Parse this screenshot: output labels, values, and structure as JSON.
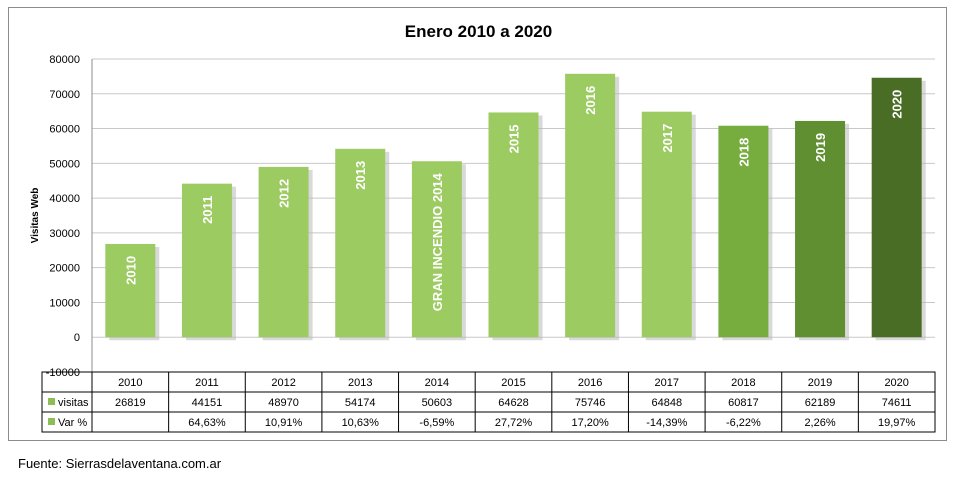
{
  "chart_data": {
    "type": "bar",
    "title": "Enero 2010 a 2020",
    "ylabel": "Visitas Web",
    "ylim": [
      -10000,
      80000
    ],
    "yticks": [
      80000,
      70000,
      60000,
      50000,
      40000,
      30000,
      20000,
      10000,
      0,
      -10000
    ],
    "grid": true,
    "categories": [
      "2010",
      "2011",
      "2012",
      "2013",
      "2014",
      "2015",
      "2016",
      "2017",
      "2018",
      "2019",
      "2020"
    ],
    "bar_labels": [
      "2010",
      "2011",
      "2012",
      "2013",
      "GRAN INCENDIO   2014",
      "2015",
      "2016",
      "2017",
      "2018",
      "2019",
      "2020"
    ],
    "series": [
      {
        "name": "visitas",
        "values": [
          26819,
          44151,
          48970,
          54174,
          50603,
          64628,
          75746,
          64848,
          60817,
          62189,
          74611
        ],
        "table_values": [
          "26819",
          "44151",
          "48970",
          "54174",
          "50603",
          "64628",
          "75746",
          "64848",
          "60817",
          "62189",
          "74611"
        ]
      },
      {
        "name": "Var %",
        "table_values": [
          "",
          "64,63%",
          "10,91%",
          "10,63%",
          "-6,59%",
          "27,72%",
          "17,20%",
          "-14,39%",
          "-6,22%",
          "2,26%",
          "19,97%"
        ]
      }
    ],
    "bar_colors": [
      "#9ccb62",
      "#9ccb62",
      "#9ccb62",
      "#9ccb62",
      "#9ccb62",
      "#9ccb62",
      "#9ccb62",
      "#9ccb62",
      "#77ad3f",
      "#5f8f30",
      "#4a6d25"
    ],
    "legend_color": "#8dbe55"
  },
  "source": "Fuente: Sierrasdelaventana.com.ar"
}
